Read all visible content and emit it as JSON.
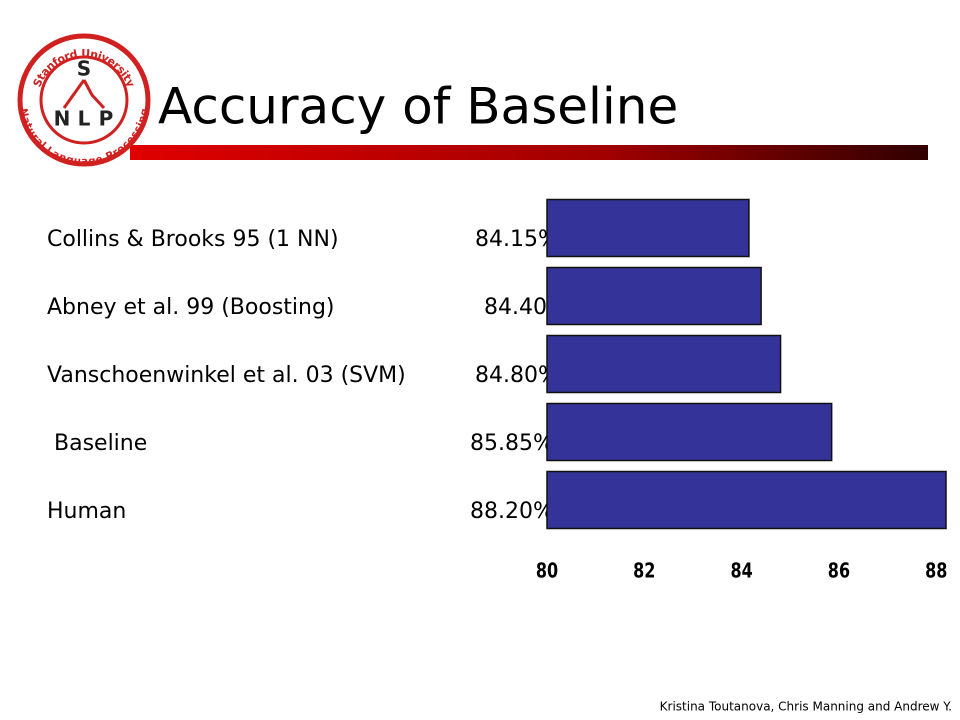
{
  "logo": {
    "top": "Stanford University",
    "bottom": "Natural Language Processing",
    "letters": [
      "S",
      "N",
      "L",
      "P"
    ]
  },
  "chart_data": {
    "type": "bar",
    "orientation": "horizontal",
    "title": "Accuracy of Baseline",
    "categories": [
      "Collins & Brooks 95 (1 NN)",
      "Abney et al. 99 (Boosting)",
      "Vanschoenwinkel et al. 03 (SVM)",
      " Baseline",
      "Human"
    ],
    "values": [
      84.15,
      84.4,
      84.8,
      85.85,
      88.2
    ],
    "value_labels": [
      "84.15%",
      "84.40%",
      "84.80%",
      "85.85%",
      "88.20%"
    ],
    "color": "#333399",
    "xlim": [
      80,
      88.2
    ],
    "xticks": [
      80,
      82,
      84,
      86,
      88
    ]
  },
  "footer": "Kristina Toutanova, Chris Manning and Andrew Y."
}
